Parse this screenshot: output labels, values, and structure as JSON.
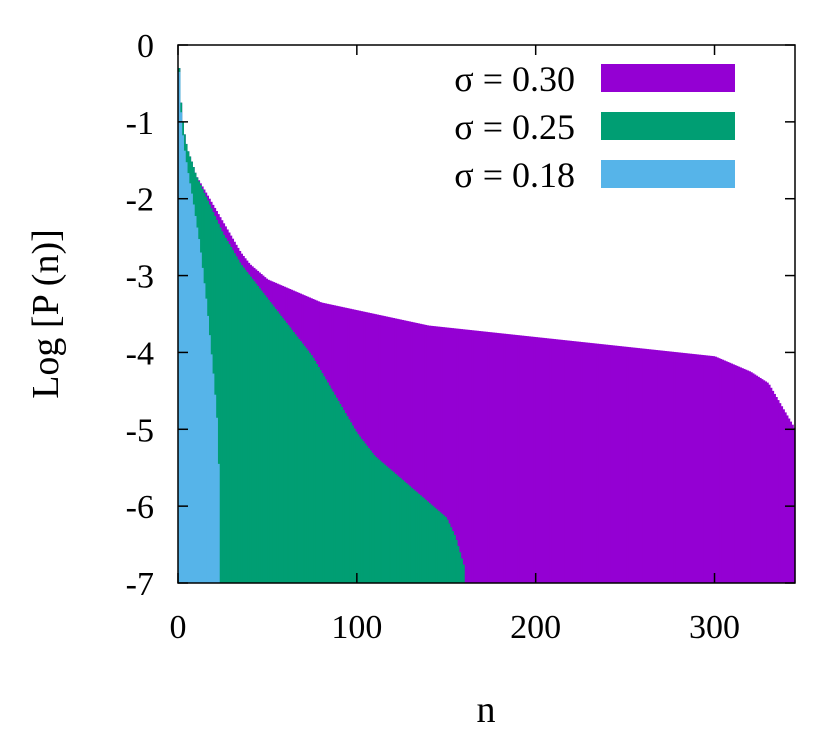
{
  "chart_data": {
    "type": "area",
    "xlabel": "n",
    "ylabel": "Log [P (n)]",
    "xlim": [
      0,
      345
    ],
    "ylim": [
      -7,
      0
    ],
    "x_ticks": [
      0,
      100,
      200,
      300
    ],
    "y_ticks": [
      0,
      -1,
      -2,
      -3,
      -4,
      -5,
      -6,
      -7
    ],
    "grid": false,
    "legend_position": "top-right",
    "series": [
      {
        "name": "σ = 0.30",
        "color": "#9400d3",
        "x": [
          0,
          1,
          2,
          3,
          5,
          8,
          10,
          15,
          20,
          25,
          30,
          35,
          40,
          50,
          60,
          70,
          80,
          90,
          100,
          120,
          140,
          160,
          180,
          200,
          220,
          240,
          260,
          280,
          300,
          310,
          320,
          330,
          335,
          340,
          345
        ],
        "y": [
          0,
          -0.6,
          -0.9,
          -1.1,
          -1.35,
          -1.55,
          -1.7,
          -1.9,
          -2.1,
          -2.3,
          -2.5,
          -2.7,
          -2.85,
          -3.05,
          -3.15,
          -3.25,
          -3.35,
          -3.4,
          -3.45,
          -3.55,
          -3.65,
          -3.7,
          -3.75,
          -3.8,
          -3.85,
          -3.9,
          -3.95,
          -4.0,
          -4.05,
          -4.15,
          -4.25,
          -4.4,
          -4.6,
          -4.8,
          -5.0
        ]
      },
      {
        "name": "σ = 0.25",
        "color": "#009e73",
        "x": [
          0,
          1,
          2,
          3,
          5,
          8,
          10,
          15,
          20,
          25,
          30,
          35,
          40,
          45,
          50,
          55,
          60,
          65,
          70,
          75,
          80,
          85,
          90,
          95,
          100,
          110,
          120,
          130,
          140,
          150,
          155,
          160
        ],
        "y": [
          0,
          -0.6,
          -0.9,
          -1.1,
          -1.35,
          -1.55,
          -1.7,
          -1.95,
          -2.2,
          -2.45,
          -2.65,
          -2.85,
          -3.0,
          -3.15,
          -3.3,
          -3.45,
          -3.6,
          -3.75,
          -3.9,
          -4.05,
          -4.25,
          -4.45,
          -4.65,
          -4.85,
          -5.05,
          -5.35,
          -5.55,
          -5.75,
          -5.95,
          -6.15,
          -6.4,
          -6.8
        ]
      },
      {
        "name": "σ = 0.18",
        "color": "#56b4e9",
        "x": [
          0,
          1,
          2,
          3,
          5,
          8,
          10,
          12,
          14,
          16,
          18,
          20,
          22,
          23
        ],
        "y": [
          0,
          -0.7,
          -1.05,
          -1.3,
          -1.6,
          -2.0,
          -2.3,
          -2.6,
          -3.0,
          -3.4,
          -3.9,
          -4.4,
          -5.0,
          -5.9
        ]
      }
    ]
  }
}
